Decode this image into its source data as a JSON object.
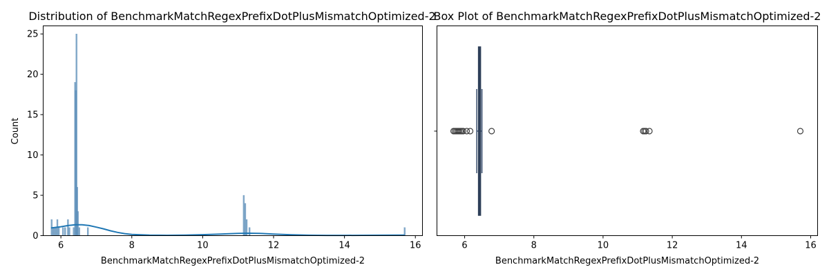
{
  "chart_data": [
    {
      "type": "histogram",
      "title": "Distribution of BenchmarkMatchRegexPrefixDotPlusMismatchOptimized-2",
      "xlabel": "BenchmarkMatchRegexPrefixDotPlusMismatchOptimized-2",
      "ylabel": "Count",
      "xlim": [
        5.5,
        16.2
      ],
      "ylim": [
        0,
        26
      ],
      "xticks": [
        6,
        8,
        10,
        12,
        14,
        16
      ],
      "yticks": [
        0,
        5,
        10,
        15,
        20,
        25
      ],
      "bar_color": "#5b8db8",
      "bars": [
        {
          "x": 5.74,
          "count": 2
        },
        {
          "x": 5.78,
          "count": 1
        },
        {
          "x": 5.82,
          "count": 1
        },
        {
          "x": 5.86,
          "count": 1
        },
        {
          "x": 5.9,
          "count": 2
        },
        {
          "x": 5.94,
          "count": 1
        },
        {
          "x": 6.06,
          "count": 1
        },
        {
          "x": 6.12,
          "count": 1
        },
        {
          "x": 6.2,
          "count": 2
        },
        {
          "x": 6.24,
          "count": 1
        },
        {
          "x": 6.36,
          "count": 1
        },
        {
          "x": 6.4,
          "count": 19
        },
        {
          "x": 6.42,
          "count": 18
        },
        {
          "x": 6.44,
          "count": 25
        },
        {
          "x": 6.46,
          "count": 6
        },
        {
          "x": 6.48,
          "count": 3
        },
        {
          "x": 6.52,
          "count": 1
        },
        {
          "x": 6.76,
          "count": 1
        },
        {
          "x": 11.16,
          "count": 5
        },
        {
          "x": 11.2,
          "count": 4
        },
        {
          "x": 11.24,
          "count": 2
        },
        {
          "x": 11.32,
          "count": 1
        },
        {
          "x": 15.7,
          "count": 1
        }
      ],
      "kde_color": "#1f77b4",
      "kde": {
        "x": [
          5.72,
          6.0,
          6.2,
          6.4,
          6.6,
          6.8,
          7.0,
          7.2,
          7.4,
          7.6,
          7.8,
          8.0,
          8.5,
          9.0,
          9.5,
          10.0,
          10.5,
          11.0,
          11.3,
          11.6,
          12.0,
          12.5,
          13.0,
          13.5,
          14.0,
          14.5,
          15.0,
          15.5,
          15.7
        ],
        "y": [
          0.95,
          1.1,
          1.25,
          1.35,
          1.35,
          1.25,
          1.05,
          0.85,
          0.6,
          0.4,
          0.25,
          0.15,
          0.06,
          0.04,
          0.06,
          0.12,
          0.2,
          0.28,
          0.3,
          0.28,
          0.2,
          0.1,
          0.05,
          0.03,
          0.03,
          0.04,
          0.05,
          0.06,
          0.06
        ]
      }
    },
    {
      "type": "box",
      "title": "Box Plot of BenchmarkMatchRegexPrefixDotPlusMismatchOptimized-2",
      "xlabel": "BenchmarkMatchRegexPrefixDotPlusMismatchOptimized-2",
      "xlim": [
        5.2,
        16.2
      ],
      "xticks": [
        6,
        8,
        10,
        12,
        14,
        16
      ],
      "box_color": "#3a4f6e",
      "box": {
        "min": 6.35,
        "q1": 6.4,
        "median": 6.43,
        "q3": 6.46,
        "max": 6.5
      },
      "outliers": [
        5.68,
        5.72,
        5.76,
        5.8,
        5.84,
        5.88,
        5.92,
        5.96,
        6.06,
        6.16,
        6.78,
        11.16,
        11.2,
        11.24,
        11.34,
        15.7
      ]
    }
  ]
}
